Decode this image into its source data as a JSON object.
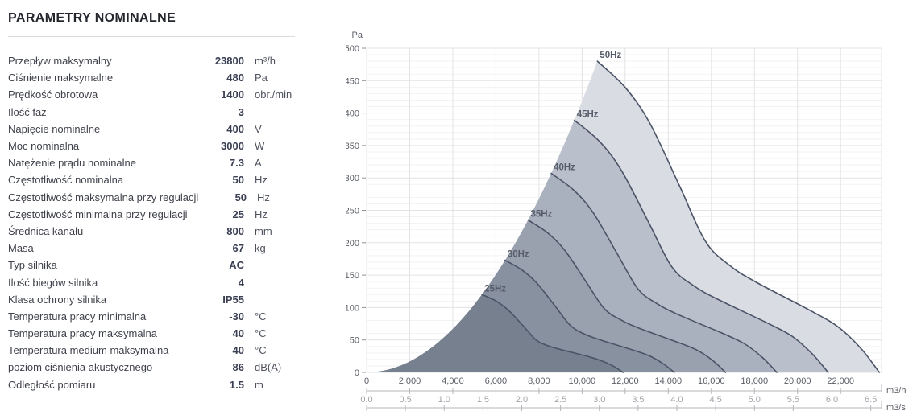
{
  "page_title": "PARAMETRY NOMINALNE",
  "parameters": [
    {
      "label": "Przepływ maksymalny",
      "value": "23800",
      "unit": "m³/h"
    },
    {
      "label": "Ciśnienie maksymalne",
      "value": "480",
      "unit": "Pa"
    },
    {
      "label": "Prędkość obrotowa",
      "value": "1400",
      "unit": "obr./min"
    },
    {
      "label": "Ilość faz",
      "value": "3",
      "unit": ""
    },
    {
      "label": "Napięcie nominalne",
      "value": "400",
      "unit": "V"
    },
    {
      "label": "Moc nominalna",
      "value": "3000",
      "unit": "W"
    },
    {
      "label": "Natężenie prądu nominalne",
      "value": "7.3",
      "unit": "A"
    },
    {
      "label": "Częstotliwość nominalna",
      "value": "50",
      "unit": "Hz"
    },
    {
      "label": "Częstotliwość maksymalna przy regulacji",
      "value": "50",
      "unit": "Hz"
    },
    {
      "label": "Częstotliwość minimalna przy regulacji",
      "value": "25",
      "unit": "Hz"
    },
    {
      "label": "Średnica kanału",
      "value": "800",
      "unit": "mm"
    },
    {
      "label": "Masa",
      "value": "67",
      "unit": "kg"
    },
    {
      "label": "Typ silnika",
      "value": "AC",
      "unit": ""
    },
    {
      "label": "Ilość biegów silnika",
      "value": "4",
      "unit": ""
    },
    {
      "label": "Klasa ochrony silnika",
      "value": "IP55",
      "unit": ""
    },
    {
      "label": "Temperatura pracy minimalna",
      "value": "-30",
      "unit": "°C"
    },
    {
      "label": "Temperatura pracy maksymalna",
      "value": "40",
      "unit": "°C"
    },
    {
      "label": "Temperatura medium maksymalna",
      "value": "40",
      "unit": "°C"
    },
    {
      "label": "poziom ciśnienia akustycznego",
      "value": "86",
      "unit": "dB(A)"
    },
    {
      "label": "Odległość pomiaru",
      "value": "1.5",
      "unit": "m"
    }
  ],
  "chart_data": {
    "type": "area",
    "title": "",
    "ylabel": "Pa",
    "xlabel_primary": "m3/h",
    "xlabel_secondary": "m3/s",
    "ylim": [
      0,
      500
    ],
    "xlim_m3h": [
      0,
      23900
    ],
    "y_major_step": 50,
    "y_minor_step": 10,
    "x_ticks_m3h": [
      0,
      2000,
      4000,
      6000,
      8000,
      10000,
      12000,
      14000,
      16000,
      18000,
      20000,
      22000
    ],
    "x_ticks_m3s": [
      0.0,
      0.5,
      1.0,
      1.5,
      2.0,
      2.5,
      3.0,
      3.5,
      4.0,
      4.5,
      5.0,
      5.5,
      6.0,
      6.5
    ],
    "grid": true,
    "legend_position": "on-curve-labels",
    "series": [
      {
        "name": "25Hz",
        "max_flow_m3h": 11900,
        "peak_pressure_pa": 120,
        "points": [
          [
            5355,
            120
          ],
          [
            6010,
            110
          ],
          [
            6575,
            96
          ],
          [
            7260,
            72
          ],
          [
            7866,
            50
          ],
          [
            8425,
            41
          ],
          [
            9044,
            35
          ],
          [
            10335,
            24
          ],
          [
            10965,
            17
          ],
          [
            11483,
            9
          ],
          [
            11900,
            0
          ]
        ]
      },
      {
        "name": "30Hz",
        "max_flow_m3h": 14280,
        "peak_pressure_pa": 173,
        "points": [
          [
            6426,
            173
          ],
          [
            7211,
            158
          ],
          [
            7890,
            138
          ],
          [
            8711,
            104
          ],
          [
            9439,
            73
          ],
          [
            10110,
            59
          ],
          [
            10853,
            50
          ],
          [
            12402,
            34
          ],
          [
            13158,
            25
          ],
          [
            13780,
            13
          ],
          [
            14280,
            0
          ]
        ]
      },
      {
        "name": "35Hz",
        "max_flow_m3h": 16660,
        "peak_pressure_pa": 235,
        "points": [
          [
            7497,
            235
          ],
          [
            8413,
            215
          ],
          [
            9205,
            188
          ],
          [
            10163,
            141
          ],
          [
            11012,
            99
          ],
          [
            11795,
            81
          ],
          [
            12662,
            68
          ],
          [
            14469,
            46
          ],
          [
            15351,
            34
          ],
          [
            16075,
            18
          ],
          [
            16660,
            0
          ]
        ]
      },
      {
        "name": "40Hz",
        "max_flow_m3h": 19040,
        "peak_pressure_pa": 307,
        "points": [
          [
            8568,
            307
          ],
          [
            9615,
            281
          ],
          [
            10520,
            246
          ],
          [
            11614,
            184
          ],
          [
            12586,
            129
          ],
          [
            13480,
            106
          ],
          [
            14470,
            89
          ],
          [
            16536,
            60
          ],
          [
            17543,
            44
          ],
          [
            18371,
            23
          ],
          [
            19040,
            0
          ]
        ]
      },
      {
        "name": "45Hz",
        "max_flow_m3h": 21420,
        "peak_pressure_pa": 389,
        "points": [
          [
            9639,
            389
          ],
          [
            10817,
            356
          ],
          [
            11835,
            311
          ],
          [
            13066,
            233
          ],
          [
            14159,
            163
          ],
          [
            15165,
            134
          ],
          [
            16279,
            113
          ],
          [
            18603,
            76
          ],
          [
            19738,
            56
          ],
          [
            20670,
            29
          ],
          [
            21420,
            0
          ]
        ]
      },
      {
        "name": "50Hz",
        "max_flow_m3h": 23800,
        "peak_pressure_pa": 480,
        "points": [
          [
            10710,
            480
          ],
          [
            12019,
            439
          ],
          [
            13150,
            384
          ],
          [
            14518,
            288
          ],
          [
            15732,
            202
          ],
          [
            16850,
            165
          ],
          [
            18088,
            139
          ],
          [
            20670,
            94
          ],
          [
            21929,
            69
          ],
          [
            22967,
            36
          ],
          [
            23800,
            0
          ]
        ]
      }
    ],
    "colors": {
      "fills": {
        "25Hz": "#76808f",
        "30Hz": "#88919f",
        "35Hz": "#99a1af",
        "40Hz": "#aab1be",
        "45Hz": "#bac0cb",
        "50Hz": "#d9dce3"
      },
      "curve_stroke": "#4b5367",
      "series_label": "#575d6a",
      "grid_major": "#e2e3e5",
      "grid_minor": "#f2f2f3",
      "axis_text": "#5a5e66",
      "axis_text_secondary": "#a0a4a9",
      "ruler": "#b3b6ba"
    }
  }
}
